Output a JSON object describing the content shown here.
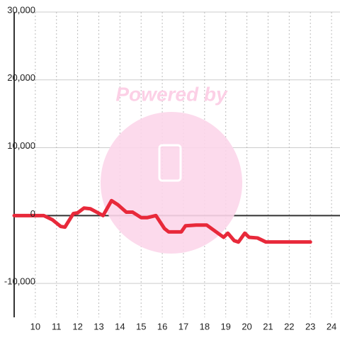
{
  "chart_data": {
    "type": "line",
    "watermark": "Powered by",
    "x": [
      9,
      10.4,
      10.8,
      11.2,
      11.4,
      11.8,
      12.0,
      12.3,
      12.6,
      13.2,
      13.6,
      13.9,
      14.3,
      14.6,
      15.0,
      15.3,
      15.7,
      16.1,
      16.3,
      16.9,
      17.1,
      17.6,
      18.1,
      18.5,
      18.9,
      19.1,
      19.4,
      19.6,
      19.9,
      20.1,
      20.5,
      20.9,
      23.0
    ],
    "series": [
      {
        "color": "#e8293a",
        "values": [
          0,
          0,
          -600,
          -1600,
          -1700,
          300,
          400,
          1100,
          1000,
          0,
          2200,
          1600,
          500,
          500,
          -300,
          -300,
          0,
          -1900,
          -2400,
          -2400,
          -1500,
          -1400,
          -1400,
          -2300,
          -3200,
          -2600,
          -3700,
          -3900,
          -2600,
          -3200,
          -3300,
          -3900,
          -3900
        ]
      }
    ],
    "xlim": [
      9,
      24.4
    ],
    "xticks": [
      10,
      11,
      12,
      13,
      14,
      15,
      16,
      17,
      18,
      19,
      20,
      21,
      22,
      23,
      24
    ],
    "ylim": [
      -15000,
      30000
    ],
    "yticks": [
      {
        "value": -10000,
        "label": "-10,000"
      },
      0,
      {
        "value": 10000,
        "label": "10,000"
      },
      {
        "value": 20000,
        "label": "20,000"
      },
      {
        "value": 30000,
        "label": "30,000"
      }
    ],
    "grid": true
  }
}
